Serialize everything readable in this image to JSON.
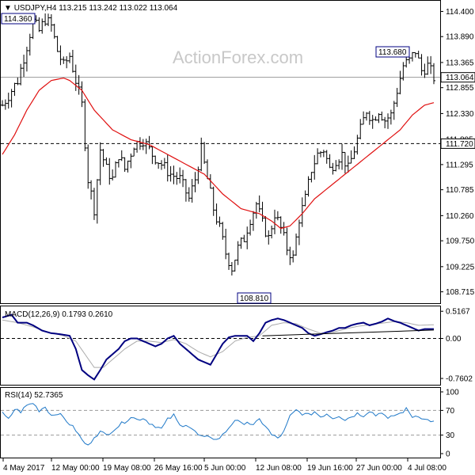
{
  "colors": {
    "background": "#ffffff",
    "bars": "#000000",
    "ma": "#e01010",
    "macd": "#000080",
    "signal": "#aaaaaa",
    "rsi": "#1e78c8",
    "grid_dash": "#000000",
    "price_line": "#999999"
  },
  "watermark": "ActionForex.com",
  "chart_data": [
    {
      "type": "ohlc",
      "title": "USDJPY,H4",
      "ohlc_readout": "113.215 113.242 113.022 113.064",
      "ylim": [
        108.5,
        114.6
      ],
      "y_ticks": [
        114.4,
        113.89,
        113.365,
        112.855,
        112.33,
        111.805,
        111.295,
        110.785,
        110.26,
        109.75,
        109.225,
        108.715
      ],
      "y_tick_labels": [
        "114.400",
        "113.890",
        "113.365",
        "112.855",
        "112.330",
        "111.805",
        "111.295",
        "110.785",
        "110.260",
        "109.750",
        "109.225",
        "108.715"
      ],
      "x_labels": [
        "4 May 2017",
        "12 May 00:00",
        "19 May 08:00",
        "26 May 16:00",
        "5 Jun 00:00",
        "12 Jun 08:00",
        "19 Jun 16:00",
        "27 Jun 00:00",
        "4 Jul 08:00"
      ],
      "close_path": [
        [
          0,
          112.5
        ],
        [
          3,
          112.8
        ],
        [
          5,
          113.0
        ],
        [
          8,
          113.7
        ],
        [
          10,
          114.2
        ],
        [
          12,
          114.0
        ],
        [
          14,
          114.25
        ],
        [
          16,
          114.1
        ],
        [
          18,
          113.6
        ],
        [
          20,
          113.3
        ],
        [
          22,
          113.5
        ],
        [
          24,
          113.0
        ],
        [
          26,
          112.5
        ],
        [
          28,
          111.0
        ],
        [
          30,
          110.4
        ],
        [
          32,
          111.6
        ],
        [
          34,
          111.2
        ],
        [
          36,
          111.0
        ],
        [
          38,
          111.5
        ],
        [
          40,
          111.2
        ],
        [
          43,
          111.7
        ],
        [
          46,
          111.8
        ],
        [
          49,
          111.5
        ],
        [
          52,
          111.3
        ],
        [
          55,
          111.1
        ],
        [
          58,
          111.0
        ],
        [
          61,
          110.6
        ],
        [
          63,
          111.0
        ],
        [
          65,
          111.6
        ],
        [
          67,
          111.0
        ],
        [
          69,
          110.4
        ],
        [
          71,
          110.0
        ],
        [
          73,
          109.5
        ],
        [
          75,
          109.2
        ],
        [
          77,
          109.6
        ],
        [
          79,
          109.8
        ],
        [
          81,
          110.2
        ],
        [
          83,
          110.5
        ],
        [
          85,
          110.1
        ],
        [
          87,
          109.8
        ],
        [
          89,
          110.3
        ],
        [
          91,
          110.0
        ],
        [
          93,
          109.6
        ],
        [
          95,
          109.4
        ],
        [
          97,
          110.2
        ],
        [
          99,
          110.6
        ],
        [
          101,
          111.2
        ],
        [
          103,
          111.5
        ],
        [
          105,
          111.6
        ],
        [
          107,
          111.2
        ],
        [
          109,
          111.4
        ],
        [
          111,
          111.5
        ],
        [
          113,
          111.2
        ],
        [
          115,
          111.6
        ],
        [
          117,
          112.0
        ],
        [
          119,
          112.4
        ],
        [
          121,
          112.2
        ],
        [
          123,
          112.4
        ],
        [
          125,
          112.2
        ],
        [
          127,
          112.3
        ],
        [
          129,
          112.8
        ],
        [
          131,
          113.3
        ],
        [
          133,
          113.4
        ],
        [
          135,
          113.6
        ],
        [
          137,
          113.2
        ],
        [
          139,
          113.3
        ],
        [
          141,
          113.064
        ]
      ],
      "ma_path": [
        [
          0,
          111.5
        ],
        [
          4,
          111.9
        ],
        [
          8,
          112.4
        ],
        [
          12,
          112.8
        ],
        [
          16,
          113.0
        ],
        [
          20,
          113.05
        ],
        [
          22,
          113.0
        ],
        [
          26,
          112.8
        ],
        [
          30,
          112.4
        ],
        [
          36,
          112.0
        ],
        [
          42,
          111.8
        ],
        [
          48,
          111.7
        ],
        [
          54,
          111.5
        ],
        [
          60,
          111.3
        ],
        [
          66,
          111.1
        ],
        [
          72,
          110.7
        ],
        [
          78,
          110.4
        ],
        [
          84,
          110.3
        ],
        [
          88,
          110.15
        ],
        [
          91,
          110.0
        ],
        [
          94,
          110.05
        ],
        [
          98,
          110.3
        ],
        [
          102,
          110.6
        ],
        [
          106,
          110.8
        ],
        [
          110,
          111.0
        ],
        [
          114,
          111.2
        ],
        [
          118,
          111.4
        ],
        [
          122,
          111.6
        ],
        [
          126,
          111.8
        ],
        [
          130,
          112.0
        ],
        [
          134,
          112.3
        ],
        [
          138,
          112.5
        ],
        [
          141,
          112.55
        ]
      ],
      "horizontal_line": 111.72,
      "horizontal_line_label": "111.720",
      "current_price": 113.064,
      "current_price_label": "113.064",
      "annotations": [
        {
          "label": "114.360",
          "value": 114.36
        },
        {
          "label": "113.680",
          "value": 113.68
        },
        {
          "label": "108.810",
          "value": 108.81
        }
      ]
    },
    {
      "type": "line",
      "title": "MACD(12,26,9) 0.1793 0.2610",
      "ylim": [
        -0.85,
        0.58
      ],
      "y_ticks": [
        0.5167,
        0.0,
        -0.7602
      ],
      "y_tick_labels": [
        "0.5167",
        "0.00",
        "-0.7602"
      ],
      "zero_line": 0.0,
      "series": [
        {
          "points": [
            [
              0,
              0.4
            ],
            [
              3,
              0.45
            ],
            [
              5,
              0.3
            ],
            [
              8,
              0.3
            ],
            [
              10,
              0.25
            ],
            [
              13,
              0.15
            ],
            [
              16,
              0.1
            ],
            [
              19,
              0.08
            ],
            [
              22,
              0.05
            ],
            [
              24,
              -0.2
            ],
            [
              26,
              -0.6
            ],
            [
              28,
              -0.7
            ],
            [
              30,
              -0.78
            ],
            [
              32,
              -0.6
            ],
            [
              34,
              -0.4
            ],
            [
              36,
              -0.3
            ],
            [
              38,
              -0.2
            ],
            [
              40,
              -0.05
            ],
            [
              42,
              0.0
            ],
            [
              44,
              0.0
            ],
            [
              46,
              -0.05
            ],
            [
              48,
              -0.1
            ],
            [
              50,
              -0.15
            ],
            [
              52,
              -0.1
            ],
            [
              54,
              0.0
            ],
            [
              56,
              0.05
            ],
            [
              58,
              -0.1
            ],
            [
              60,
              -0.2
            ],
            [
              62,
              -0.3
            ],
            [
              64,
              -0.4
            ],
            [
              66,
              -0.45
            ],
            [
              68,
              -0.5
            ],
            [
              70,
              -0.3
            ],
            [
              72,
              -0.1
            ],
            [
              74,
              0.02
            ],
            [
              76,
              0.05
            ],
            [
              78,
              0.05
            ],
            [
              80,
              0.05
            ],
            [
              82,
              -0.05
            ],
            [
              84,
              0.1
            ],
            [
              86,
              0.3
            ],
            [
              88,
              0.35
            ],
            [
              90,
              0.38
            ],
            [
              92,
              0.35
            ],
            [
              94,
              0.3
            ],
            [
              96,
              0.25
            ],
            [
              98,
              0.2
            ],
            [
              100,
              0.1
            ],
            [
              102,
              0.05
            ],
            [
              104,
              0.08
            ],
            [
              106,
              0.12
            ],
            [
              108,
              0.15
            ],
            [
              110,
              0.2
            ],
            [
              112,
              0.2
            ],
            [
              114,
              0.25
            ],
            [
              116,
              0.28
            ],
            [
              118,
              0.3
            ],
            [
              120,
              0.25
            ],
            [
              122,
              0.28
            ],
            [
              124,
              0.32
            ],
            [
              126,
              0.38
            ],
            [
              128,
              0.33
            ],
            [
              130,
              0.3
            ],
            [
              132,
              0.25
            ],
            [
              134,
              0.2
            ],
            [
              136,
              0.15
            ],
            [
              138,
              0.18
            ],
            [
              141,
              0.1793
            ]
          ]
        },
        {
          "points": [
            [
              0,
              0.35
            ],
            [
              5,
              0.3
            ],
            [
              10,
              0.22
            ],
            [
              15,
              0.12
            ],
            [
              20,
              0.05
            ],
            [
              24,
              -0.05
            ],
            [
              27,
              -0.3
            ],
            [
              30,
              -0.55
            ],
            [
              33,
              -0.55
            ],
            [
              36,
              -0.4
            ],
            [
              40,
              -0.2
            ],
            [
              44,
              -0.05
            ],
            [
              48,
              -0.05
            ],
            [
              52,
              -0.08
            ],
            [
              56,
              -0.02
            ],
            [
              60,
              -0.1
            ],
            [
              64,
              -0.25
            ],
            [
              68,
              -0.35
            ],
            [
              72,
              -0.25
            ],
            [
              76,
              -0.05
            ],
            [
              80,
              0.02
            ],
            [
              84,
              0.05
            ],
            [
              88,
              0.25
            ],
            [
              92,
              0.3
            ],
            [
              96,
              0.28
            ],
            [
              100,
              0.18
            ],
            [
              104,
              0.1
            ],
            [
              108,
              0.12
            ],
            [
              112,
              0.18
            ],
            [
              116,
              0.23
            ],
            [
              120,
              0.26
            ],
            [
              124,
              0.29
            ],
            [
              128,
              0.32
            ],
            [
              132,
              0.3
            ],
            [
              136,
              0.25
            ],
            [
              141,
              0.261
            ]
          ]
        }
      ],
      "trendline": [
        [
          85,
          0.05
        ],
        [
          141,
          0.16
        ]
      ]
    },
    {
      "type": "line",
      "title": "RSI(14) 52.7365",
      "ylim": [
        0,
        100
      ],
      "y_ticks": [
        100,
        70,
        30,
        0
      ],
      "y_tick_labels": [
        "100",
        "70",
        "30",
        "0"
      ],
      "dashed_levels": [
        70,
        30
      ],
      "series": [
        {
          "points": [
            [
              0,
              65
            ],
            [
              2,
              55
            ],
            [
              4,
              72
            ],
            [
              6,
              68
            ],
            [
              8,
              78
            ],
            [
              10,
              82
            ],
            [
              12,
              70
            ],
            [
              14,
              76
            ],
            [
              16,
              62
            ],
            [
              18,
              66
            ],
            [
              20,
              58
            ],
            [
              22,
              48
            ],
            [
              24,
              38
            ],
            [
              26,
              22
            ],
            [
              28,
              12
            ],
            [
              30,
              28
            ],
            [
              32,
              35
            ],
            [
              34,
              30
            ],
            [
              36,
              38
            ],
            [
              38,
              45
            ],
            [
              40,
              52
            ],
            [
              42,
              60
            ],
            [
              44,
              55
            ],
            [
              46,
              58
            ],
            [
              48,
              50
            ],
            [
              50,
              45
            ],
            [
              52,
              40
            ],
            [
              54,
              55
            ],
            [
              56,
              62
            ],
            [
              58,
              45
            ],
            [
              60,
              48
            ],
            [
              62,
              40
            ],
            [
              64,
              30
            ],
            [
              66,
              25
            ],
            [
              68,
              28
            ],
            [
              70,
              22
            ],
            [
              72,
              30
            ],
            [
              74,
              42
            ],
            [
              76,
              55
            ],
            [
              78,
              48
            ],
            [
              80,
              52
            ],
            [
              82,
              45
            ],
            [
              84,
              55
            ],
            [
              86,
              45
            ],
            [
              88,
              30
            ],
            [
              90,
              25
            ],
            [
              92,
              35
            ],
            [
              94,
              60
            ],
            [
              96,
              70
            ],
            [
              98,
              65
            ],
            [
              100,
              62
            ],
            [
              102,
              68
            ],
            [
              104,
              60
            ],
            [
              106,
              65
            ],
            [
              108,
              58
            ],
            [
              110,
              62
            ],
            [
              112,
              55
            ],
            [
              114,
              60
            ],
            [
              116,
              65
            ],
            [
              118,
              62
            ],
            [
              120,
              70
            ],
            [
              122,
              62
            ],
            [
              124,
              68
            ],
            [
              126,
              55
            ],
            [
              128,
              62
            ],
            [
              130,
              65
            ],
            [
              132,
              72
            ],
            [
              134,
              60
            ],
            [
              136,
              62
            ],
            [
              138,
              55
            ],
            [
              141,
              52.7365
            ]
          ]
        }
      ]
    }
  ]
}
